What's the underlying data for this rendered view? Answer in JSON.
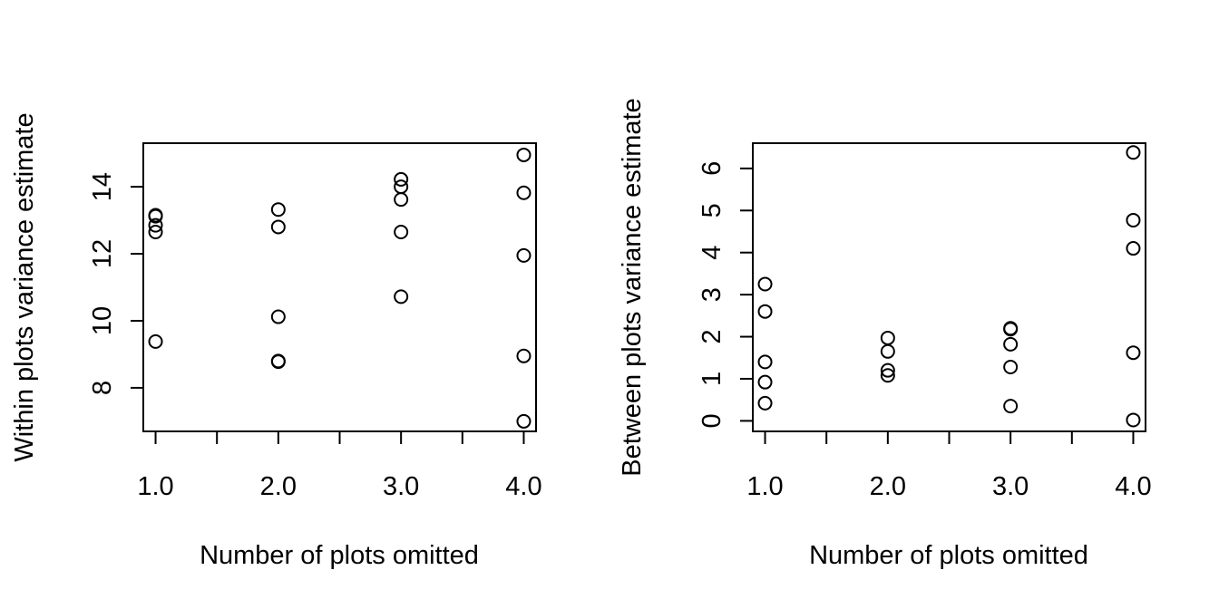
{
  "chart_data": [
    {
      "type": "scatter",
      "xlabel": "Number of plots omitted",
      "ylabel": "Within plots variance estimate",
      "xlim": [
        0.9,
        4.1
      ],
      "ylim": [
        6.7,
        15.3
      ],
      "xticks": [
        1.0,
        1.5,
        2.0,
        2.5,
        3.0,
        3.5,
        4.0
      ],
      "xtick_labels": [
        "1.0",
        "",
        "2.0",
        "",
        "3.0",
        "",
        "4.0"
      ],
      "yticks": [
        8,
        10,
        12,
        14
      ],
      "ytick_labels": [
        "8",
        "10",
        "12",
        "14"
      ],
      "grid": false,
      "legend": "none",
      "x": [
        1,
        1,
        1,
        1,
        1,
        2,
        2,
        2,
        2,
        2,
        3,
        3,
        3,
        3,
        3,
        4,
        4,
        4,
        4,
        4
      ],
      "y": [
        13.15,
        13.12,
        12.85,
        12.65,
        9.38,
        13.32,
        12.8,
        10.12,
        8.8,
        8.78,
        14.22,
        14.0,
        13.62,
        12.65,
        10.72,
        14.95,
        13.82,
        11.95,
        8.95,
        7.0
      ]
    },
    {
      "type": "scatter",
      "xlabel": "Number of plots omitted",
      "ylabel": "Between plots variance estimate",
      "xlim": [
        0.9,
        4.1
      ],
      "ylim": [
        -0.25,
        6.6
      ],
      "xticks": [
        1.0,
        1.5,
        2.0,
        2.5,
        3.0,
        3.5,
        4.0
      ],
      "xtick_labels": [
        "1.0",
        "",
        "2.0",
        "",
        "3.0",
        "",
        "4.0"
      ],
      "yticks": [
        0,
        1,
        2,
        3,
        4,
        5,
        6
      ],
      "ytick_labels": [
        "0",
        "1",
        "2",
        "3",
        "4",
        "5",
        "6"
      ],
      "grid": false,
      "legend": "none",
      "x": [
        1,
        1,
        1,
        1,
        1,
        2,
        2,
        2,
        2,
        3,
        3,
        3,
        3,
        3,
        4,
        4,
        4,
        4,
        4
      ],
      "y": [
        3.25,
        2.6,
        1.4,
        0.92,
        0.42,
        1.97,
        1.65,
        1.2,
        1.08,
        2.2,
        2.18,
        1.82,
        1.28,
        0.35,
        6.38,
        4.77,
        4.1,
        1.62,
        0.02
      ]
    }
  ]
}
